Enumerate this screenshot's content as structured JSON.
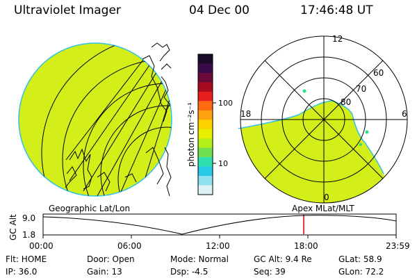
{
  "header": {
    "title": "Ultraviolet Imager",
    "date": "04 Dec 00",
    "time": "17:46:48 UT"
  },
  "colorbar": {
    "label": "photon cm⁻²s⁻¹",
    "ticks": [
      "100",
      "10"
    ],
    "colors": [
      "#1a0a2a",
      "#3a0a4a",
      "#6a0a3a",
      "#a80a20",
      "#e81e1e",
      "#ff6a10",
      "#ffa010",
      "#ffd000",
      "#e8f000",
      "#b4ef1c",
      "#70e050",
      "#2ee0b0",
      "#28c8e8",
      "#8ce0f0",
      "#dcf2f6"
    ]
  },
  "left_panel": {
    "title": "Geographic Lat/Lon",
    "fill_color": "#d4ee1a"
  },
  "right_panel": {
    "title": "Apex MLat/MLT",
    "labels": {
      "mlt_top": "12",
      "mlt_left": "18",
      "mlt_right": "6",
      "mlt_bottom": "0",
      "lat_60": "60",
      "lat_70": "70",
      "lat_80": "80"
    }
  },
  "altitude_plot": {
    "ylabel": "GC Alt",
    "yticks": [
      "9.0",
      "1.8"
    ],
    "xticks": [
      "00:00",
      "06:00",
      "12:00",
      "18:00",
      "23:59"
    ],
    "current_marker_color": "#cc0000"
  },
  "info": {
    "flt": "Flt: HOME",
    "ip": "IP: 36.0",
    "door": "Door: Open",
    "gain": "Gain: 13",
    "mode": "Mode: Normal",
    "dsp": "Dsp:    -4.5",
    "gc_alt": "GC Alt: 9.4 Re",
    "seq": "Seq: 39",
    "glat": "GLat:  58.9",
    "glon": "GLon:  72.2"
  }
}
